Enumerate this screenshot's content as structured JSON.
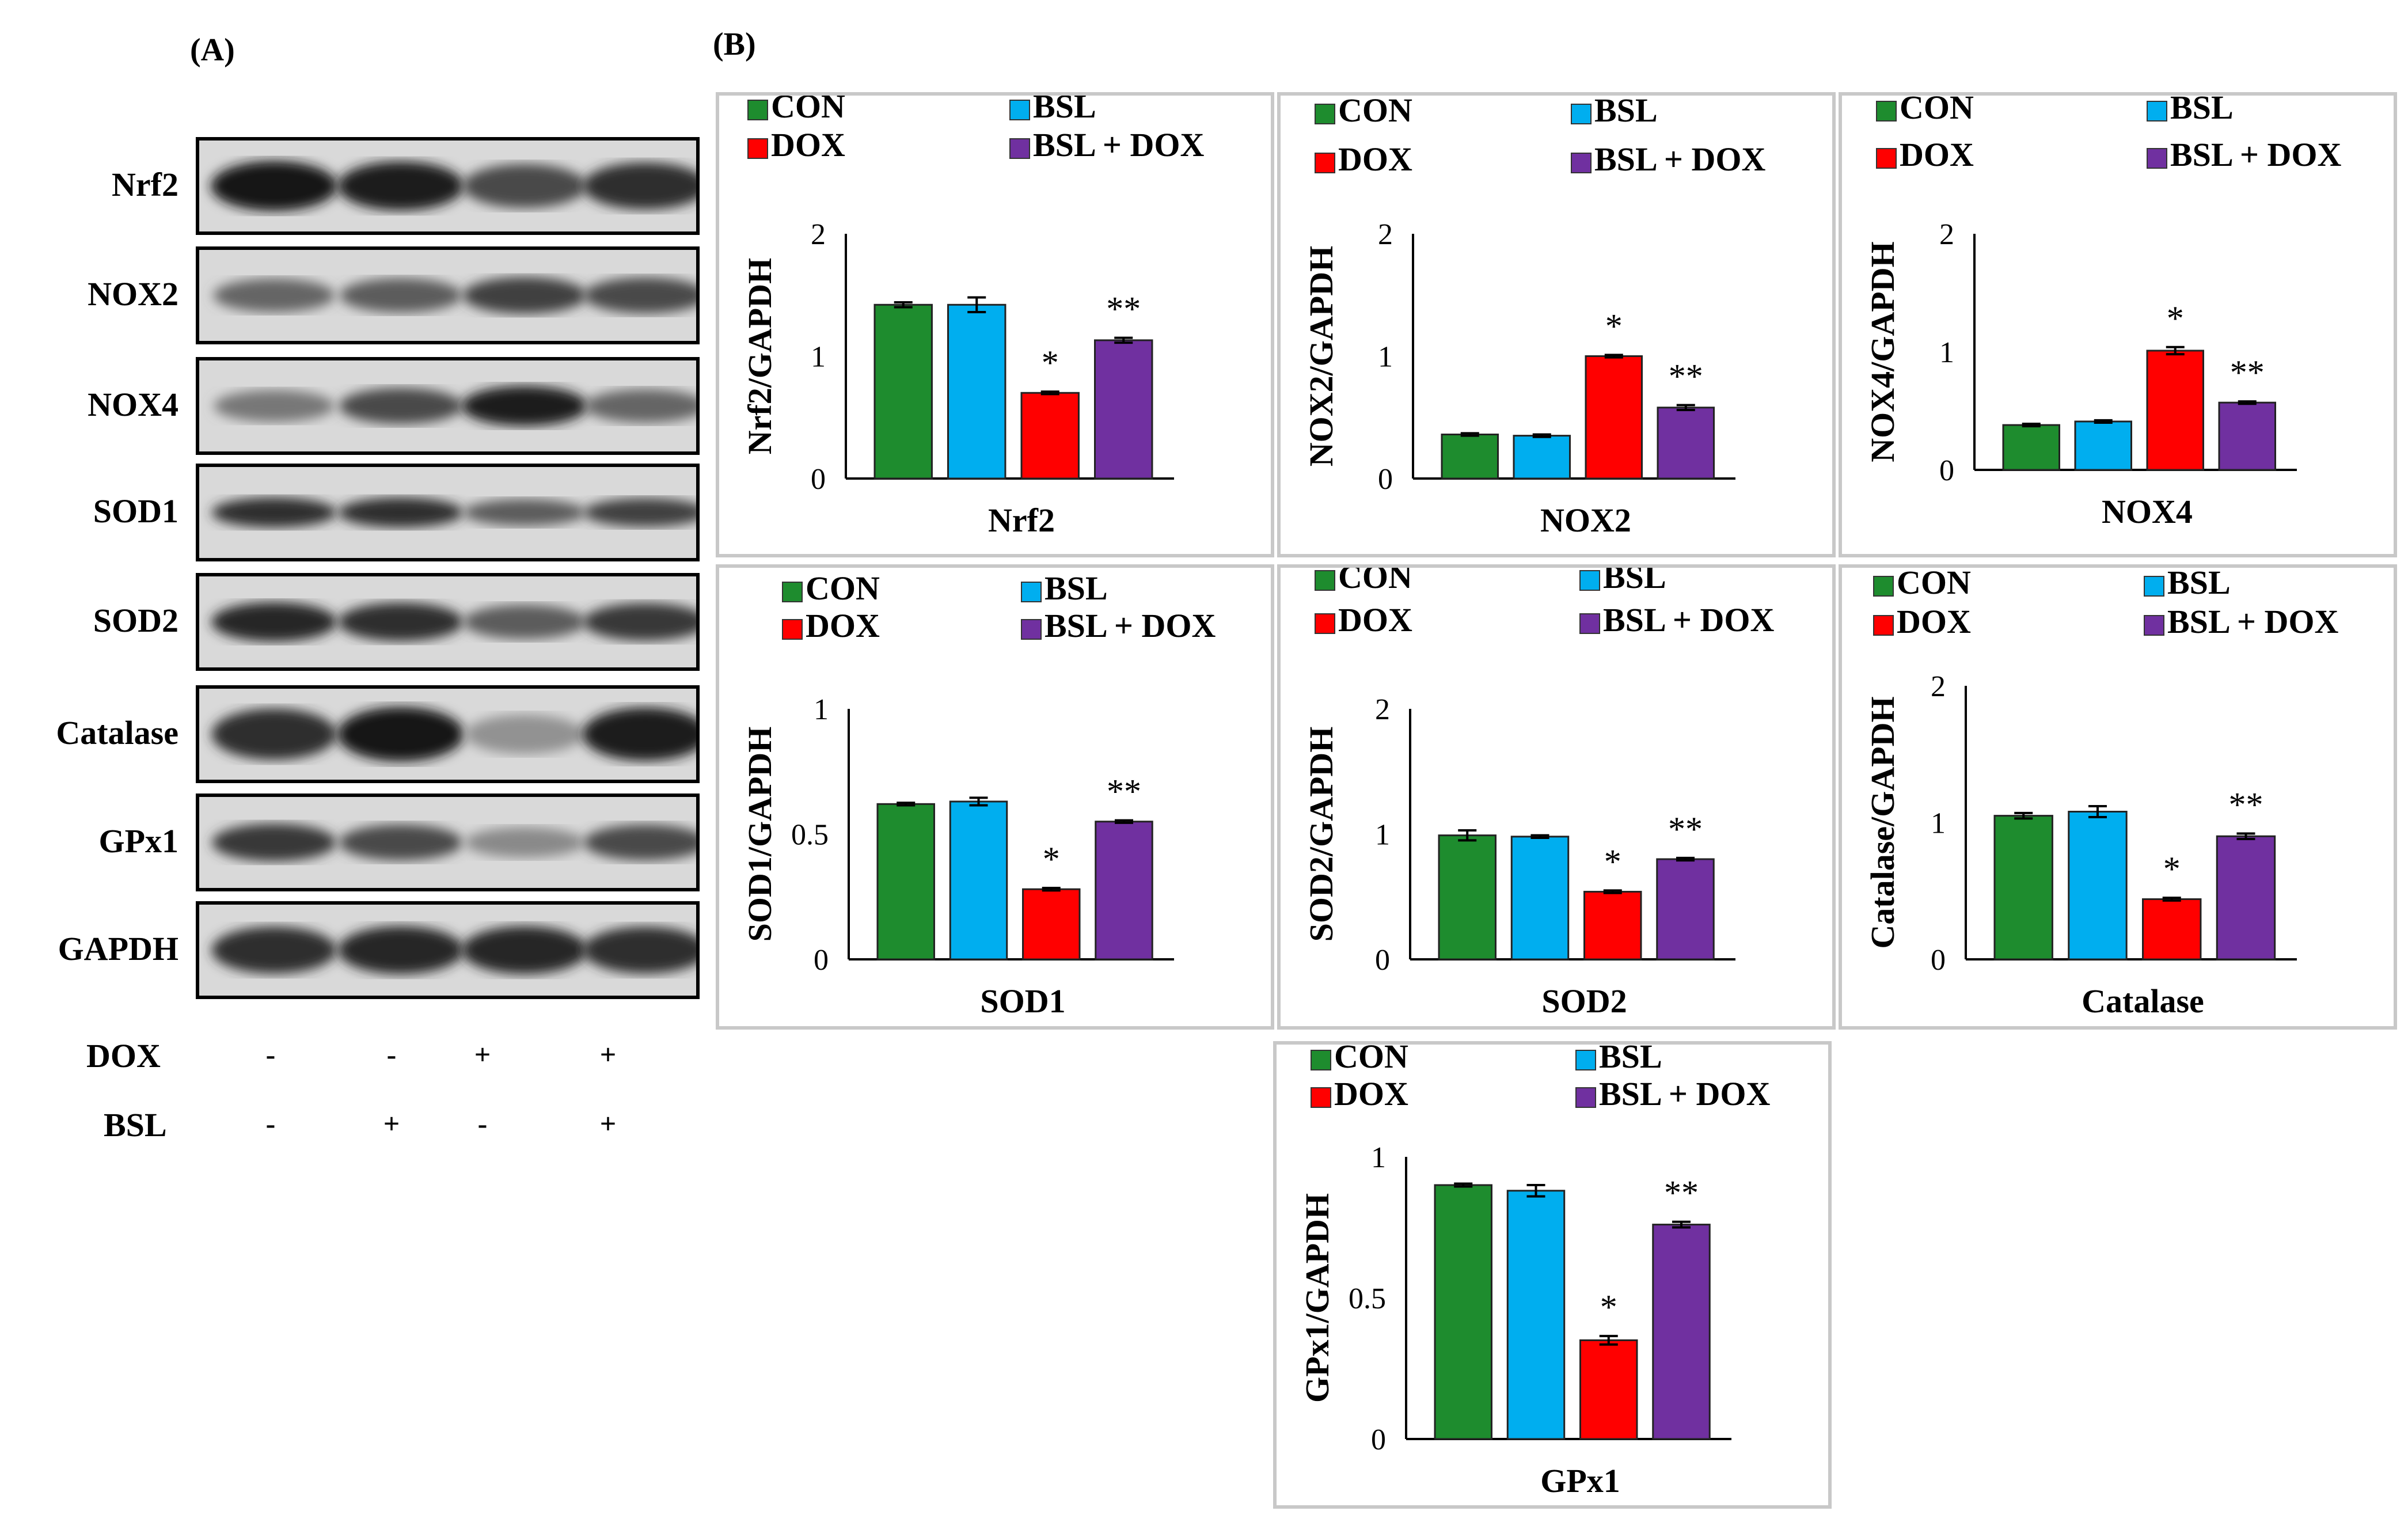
{
  "panel_a": {
    "label": "(A)",
    "blots": [
      "Nrf2",
      "NOX2",
      "NOX4",
      "SOD1",
      "SOD2",
      "Catalase",
      "GPx1",
      "GAPDH"
    ],
    "treatments": [
      {
        "label": "DOX",
        "signs": [
          "-",
          "-",
          "+",
          "+"
        ]
      },
      {
        "label": "BSL",
        "signs": [
          "-",
          "+",
          "-",
          "+"
        ]
      }
    ]
  },
  "panel_b": {
    "label": "(B)"
  },
  "legend": [
    {
      "label": "CON",
      "color": "#1e8c2e"
    },
    {
      "label": "BSL",
      "color": "#00aeef"
    },
    {
      "label": "DOX",
      "color": "#ff0000"
    },
    {
      "label": "BSL + DOX",
      "color": "#7030a0"
    }
  ],
  "chart_data": [
    {
      "type": "bar",
      "id": "nrf2",
      "categories": [
        "CON",
        "BSL",
        "DOX",
        "BSL + DOX"
      ],
      "values": [
        1.42,
        1.42,
        0.7,
        1.13
      ],
      "errors": [
        0.02,
        0.06,
        0.01,
        0.02
      ],
      "sig": [
        "",
        "",
        "*",
        "**"
      ],
      "title": "",
      "xlabel": "Nrf2",
      "ylabel": "Nrf2/GAPDH",
      "ylim": [
        0,
        2
      ],
      "ticks": [
        "0",
        "1",
        "2"
      ],
      "tick_values": [
        0,
        1,
        2
      ]
    },
    {
      "type": "bar",
      "id": "nox2",
      "categories": [
        "CON",
        "BSL",
        "DOX",
        "BSL + DOX"
      ],
      "values": [
        0.36,
        0.35,
        1.0,
        0.58
      ],
      "errors": [
        0.01,
        0.01,
        0.01,
        0.02
      ],
      "sig": [
        "",
        "",
        "*",
        "**"
      ],
      "title": "",
      "xlabel": "NOX2",
      "ylabel": "NOX2/GAPDH",
      "ylim": [
        0,
        2
      ],
      "ticks": [
        "0",
        "1",
        "2"
      ],
      "tick_values": [
        0,
        1,
        2
      ]
    },
    {
      "type": "bar",
      "id": "nox4",
      "categories": [
        "CON",
        "BSL",
        "DOX",
        "BSL + DOX"
      ],
      "values": [
        0.38,
        0.41,
        1.01,
        0.57
      ],
      "errors": [
        0.01,
        0.01,
        0.03,
        0.01
      ],
      "sig": [
        "",
        "",
        "*",
        "**"
      ],
      "title": "",
      "xlabel": "NOX4",
      "ylabel": "NOX4/GAPDH",
      "ylim": [
        0,
        2
      ],
      "ticks": [
        "0",
        "1",
        "2"
      ],
      "tick_values": [
        0,
        1,
        2
      ]
    },
    {
      "type": "bar",
      "id": "sod1",
      "categories": [
        "CON",
        "BSL",
        "DOX",
        "BSL + DOX"
      ],
      "values": [
        0.62,
        0.63,
        0.28,
        0.55
      ],
      "errors": [
        0.005,
        0.015,
        0.005,
        0.005
      ],
      "sig": [
        "",
        "",
        "*",
        "**"
      ],
      "title": "",
      "xlabel": "SOD1",
      "ylabel": "SOD1/GAPDH",
      "ylim": [
        0,
        1
      ],
      "ticks": [
        "0",
        "0.5",
        "1"
      ],
      "tick_values": [
        0,
        0.5,
        1
      ]
    },
    {
      "type": "bar",
      "id": "sod2",
      "categories": [
        "CON",
        "BSL",
        "DOX",
        "BSL + DOX"
      ],
      "values": [
        0.99,
        0.98,
        0.54,
        0.8
      ],
      "errors": [
        0.04,
        0.01,
        0.01,
        0.01
      ],
      "sig": [
        "",
        "",
        "*",
        "**"
      ],
      "title": "",
      "xlabel": "SOD2",
      "ylabel": "SOD2/GAPDH",
      "ylim": [
        0,
        2
      ],
      "ticks": [
        "0",
        "1",
        "2"
      ],
      "tick_values": [
        0,
        1,
        2
      ]
    },
    {
      "type": "bar",
      "id": "catalase",
      "categories": [
        "CON",
        "BSL",
        "DOX",
        "BSL + DOX"
      ],
      "values": [
        1.05,
        1.08,
        0.44,
        0.9
      ],
      "errors": [
        0.02,
        0.04,
        0.01,
        0.02
      ],
      "sig": [
        "",
        "",
        "*",
        "**"
      ],
      "title": "",
      "xlabel": "Catalase",
      "ylabel": "Catalase/GAPDH",
      "ylim": [
        0,
        2
      ],
      "ticks": [
        "0",
        "1",
        "2"
      ],
      "tick_values": [
        0,
        1,
        2
      ]
    },
    {
      "type": "bar",
      "id": "gpx1",
      "categories": [
        "CON",
        "BSL",
        "DOX",
        "BSL + DOX"
      ],
      "values": [
        0.9,
        0.88,
        0.35,
        0.76
      ],
      "errors": [
        0.005,
        0.02,
        0.015,
        0.01
      ],
      "sig": [
        "",
        "",
        "*",
        "**"
      ],
      "title": "",
      "xlabel": "GPx1",
      "ylabel": "GPx1/GAPDH",
      "ylim": [
        0,
        1
      ],
      "ticks": [
        "0",
        "0.5",
        "1"
      ],
      "tick_values": [
        0,
        0.5,
        1
      ]
    }
  ]
}
